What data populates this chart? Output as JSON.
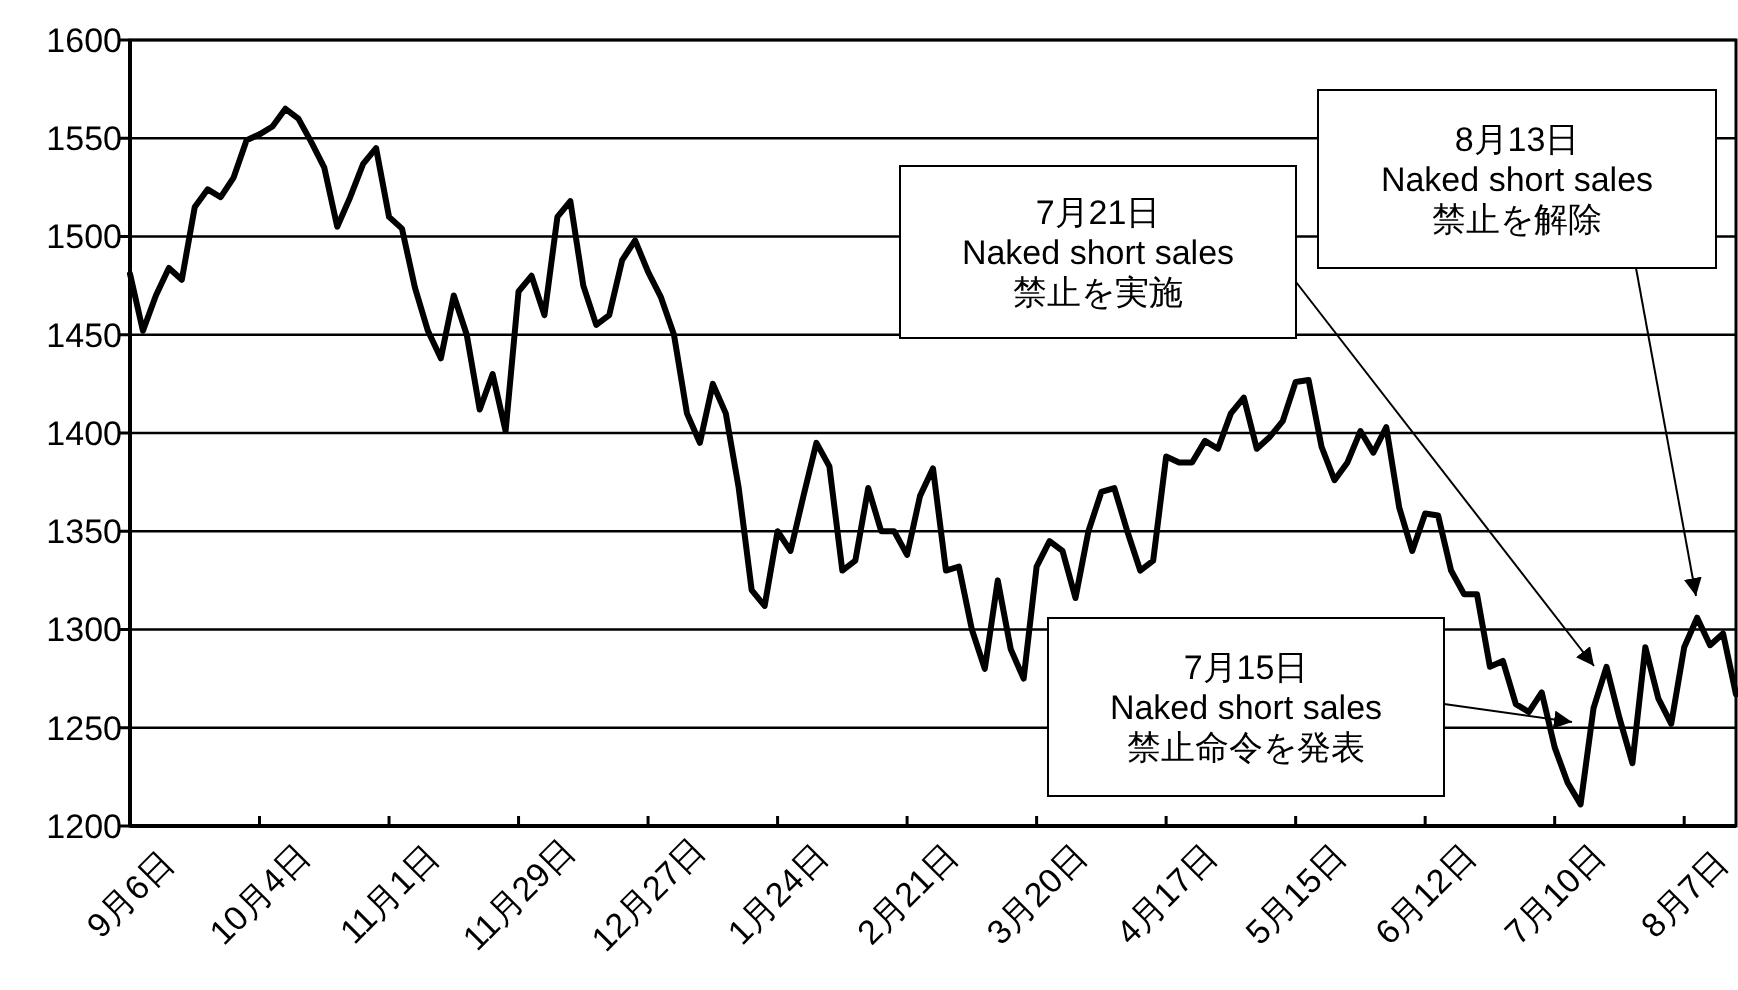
{
  "chart_data": {
    "type": "line",
    "categories": [
      "9月6日",
      null,
      null,
      null,
      null,
      null,
      null,
      null,
      null,
      null,
      "10月4日",
      null,
      null,
      null,
      null,
      null,
      null,
      null,
      null,
      null,
      "11月1日",
      null,
      null,
      null,
      null,
      null,
      null,
      null,
      null,
      null,
      "11月29日",
      null,
      null,
      null,
      null,
      null,
      null,
      null,
      null,
      null,
      "12月27日",
      null,
      null,
      null,
      null,
      null,
      null,
      null,
      null,
      null,
      "1月24日",
      null,
      null,
      null,
      null,
      null,
      null,
      null,
      null,
      null,
      "2月21日",
      null,
      null,
      null,
      null,
      null,
      null,
      null,
      null,
      null,
      "3月20日",
      null,
      null,
      null,
      null,
      null,
      null,
      null,
      null,
      null,
      "4月17日",
      null,
      null,
      null,
      null,
      null,
      null,
      null,
      null,
      null,
      "5月15日",
      null,
      null,
      null,
      null,
      null,
      null,
      null,
      null,
      null,
      "6月12日",
      null,
      null,
      null,
      null,
      null,
      null,
      null,
      null,
      null,
      "7月10日",
      null,
      null,
      null,
      null,
      null,
      null,
      null,
      null,
      null,
      "8月7日",
      null,
      null,
      null,
      null
    ],
    "series": [
      {
        "color": "#000000",
        "values": [
          1481,
          1452,
          1470,
          1484,
          1478,
          1515,
          1524,
          1520,
          1530,
          1549,
          1552,
          1556,
          1565,
          1560,
          1548,
          1535,
          1505,
          1520,
          1537,
          1545,
          1510,
          1504,
          1474,
          1452,
          1438,
          1470,
          1450,
          1412,
          1430,
          1401,
          1472,
          1480,
          1460,
          1510,
          1518,
          1475,
          1455,
          1460,
          1488,
          1498,
          1482,
          1469,
          1450,
          1410,
          1395,
          1425,
          1410,
          1372,
          1320,
          1312,
          1350,
          1340,
          1368,
          1395,
          1383,
          1330,
          1335,
          1372,
          1350,
          1350,
          1338,
          1368,
          1382,
          1330,
          1332,
          1300,
          1280,
          1325,
          1290,
          1275,
          1332,
          1345,
          1340,
          1316,
          1350,
          1370,
          1372,
          1350,
          1330,
          1335,
          1388,
          1385,
          1385,
          1396,
          1392,
          1410,
          1418,
          1392,
          1398,
          1406,
          1426,
          1427,
          1393,
          1376,
          1385,
          1401,
          1390,
          1403,
          1362,
          1340,
          1359,
          1358,
          1330,
          1318,
          1318,
          1281,
          1284,
          1262,
          1258,
          1268,
          1240,
          1222,
          1211,
          1260,
          1281,
          1255,
          1232,
          1291,
          1265,
          1252,
          1291,
          1306,
          1292,
          1298,
          1267
        ]
      }
    ],
    "ylim": [
      1200,
      1600
    ],
    "yticks": [
      1200,
      1250,
      1300,
      1350,
      1400,
      1450,
      1500,
      1550,
      1600
    ],
    "grid": "y",
    "marker": "none",
    "line_style": "solid",
    "annotations": [
      "7月21日\nNaked short sales\n禁止を実施",
      "8月13日\nNaked short sales\n禁止を解除",
      "7月15日\nNaked short sales\n禁止命令を発表"
    ]
  }
}
